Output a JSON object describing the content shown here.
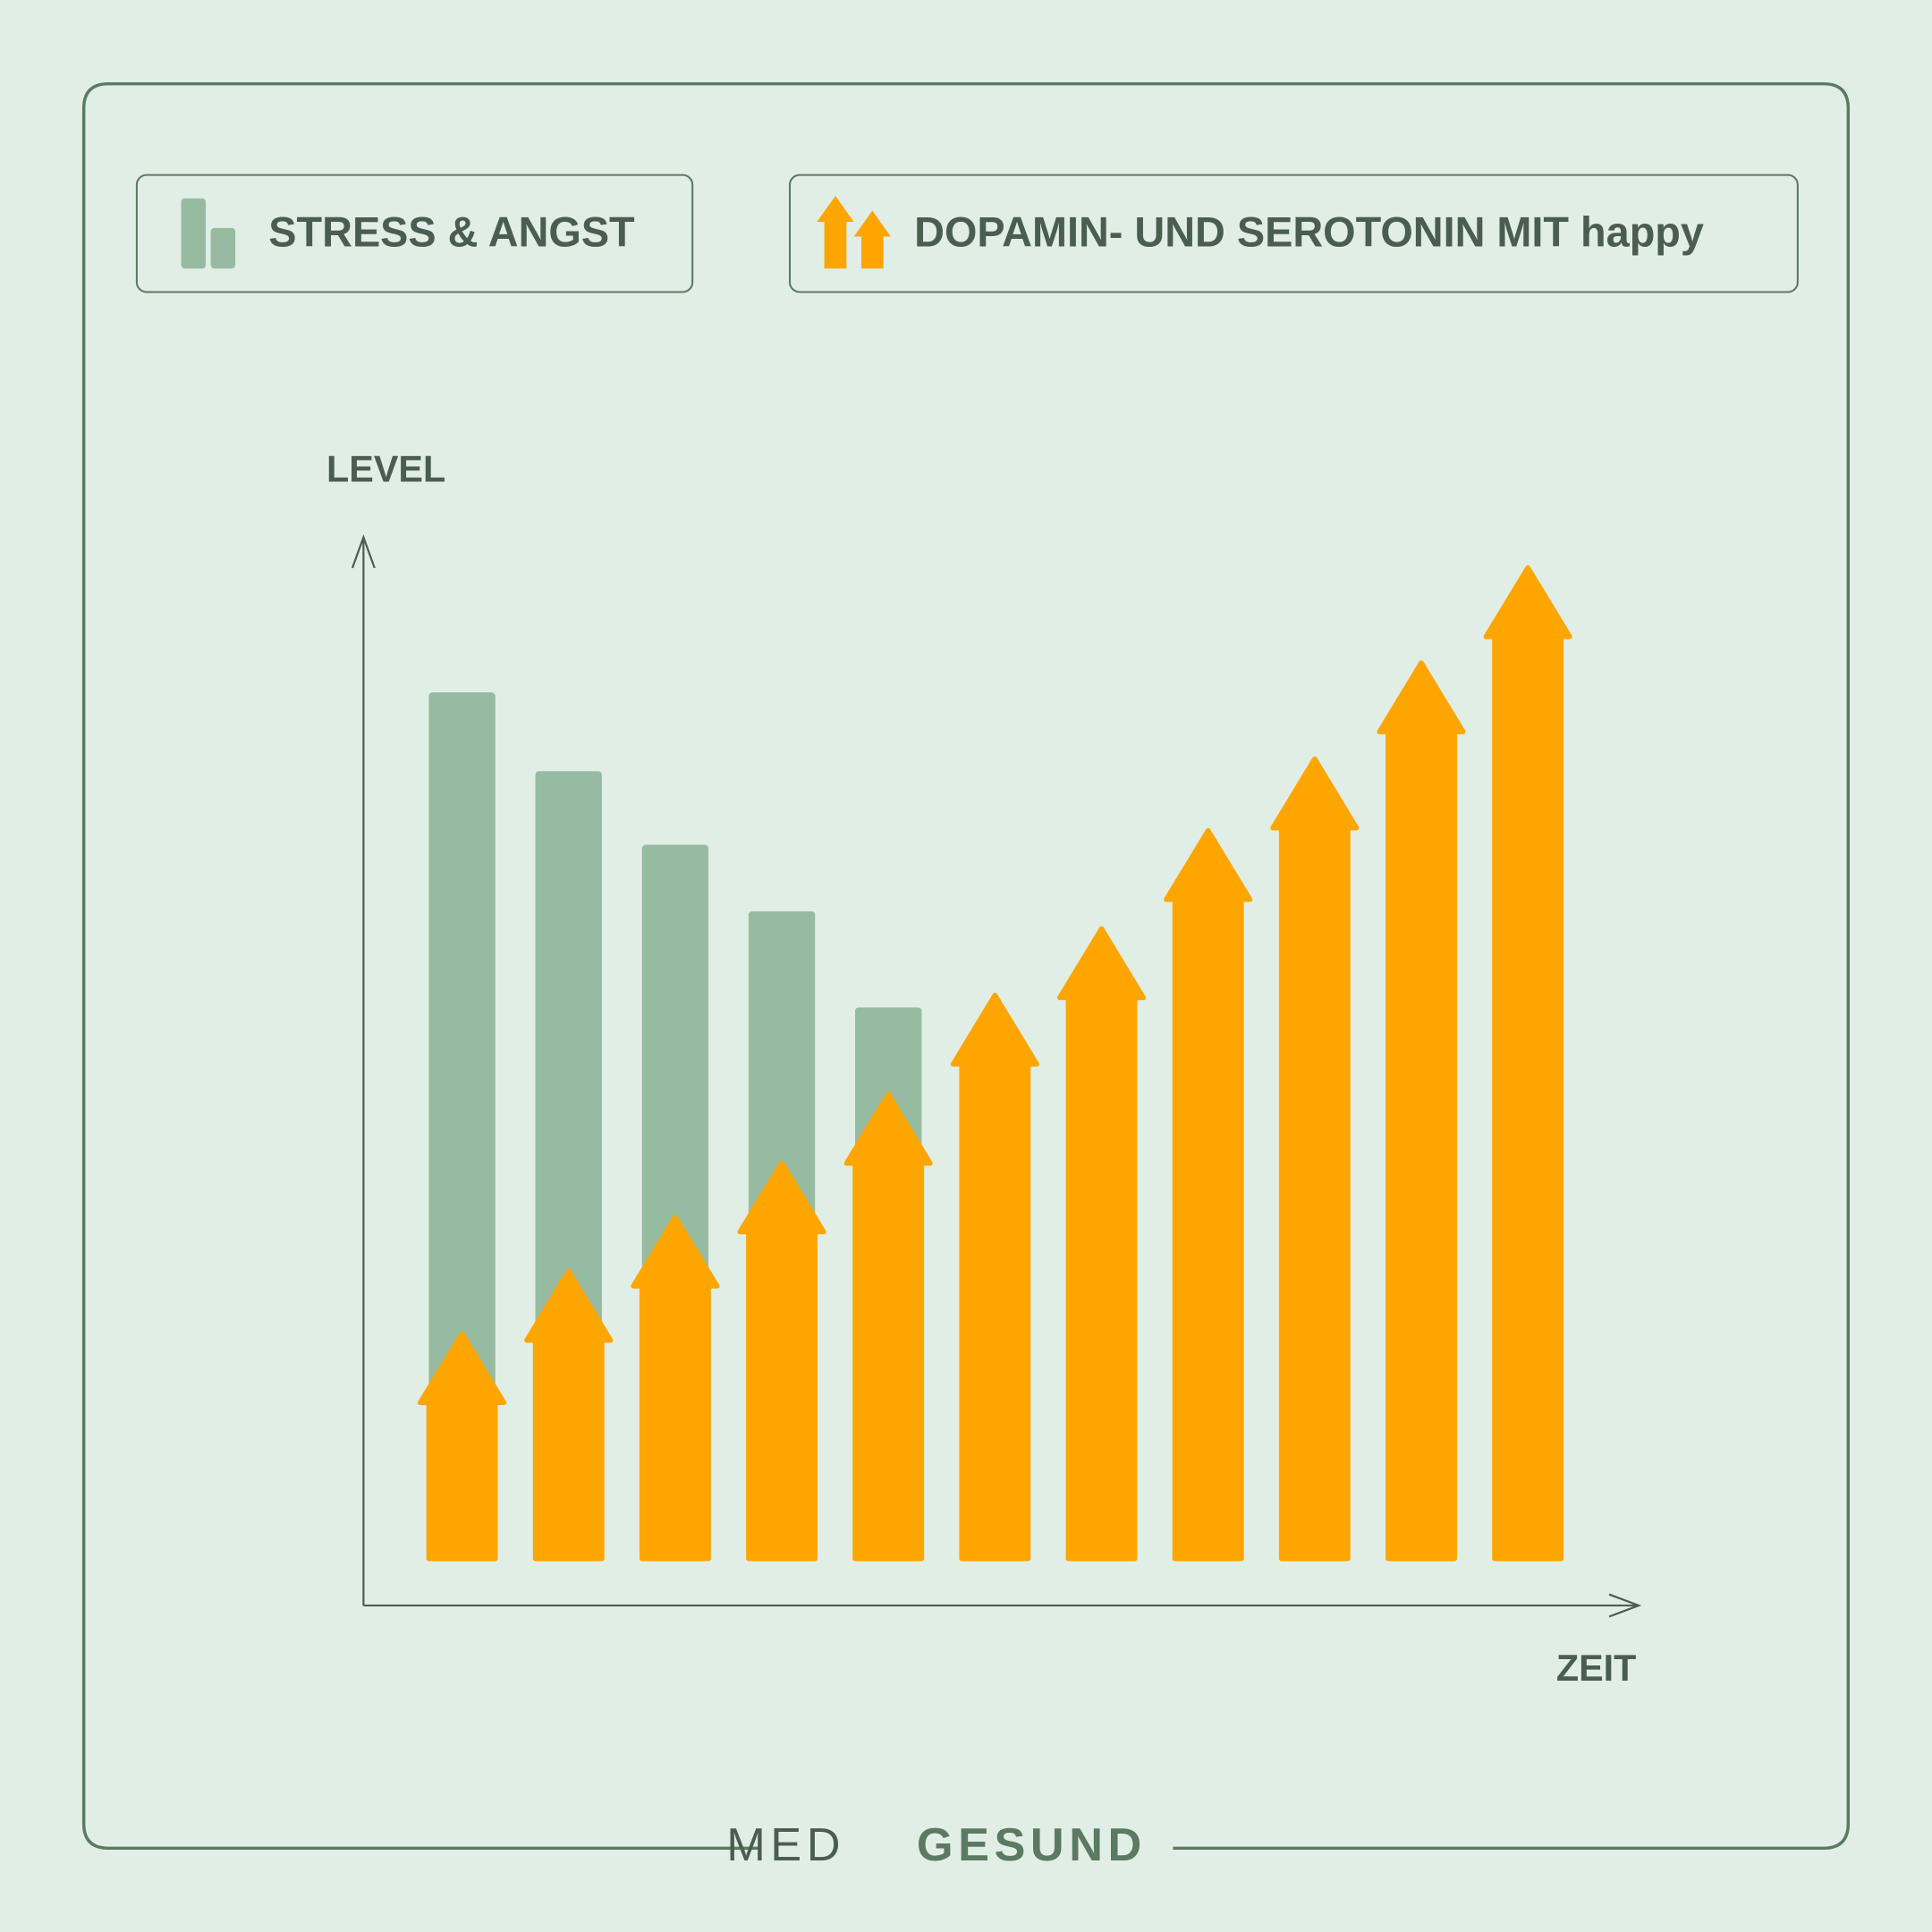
{
  "chart_data": {
    "type": "bar_arrow",
    "y_label": "LEVEL",
    "x_label": "ZEIT",
    "categories": [
      null,
      null,
      null,
      null,
      null,
      null,
      null,
      null,
      null,
      null,
      null
    ],
    "series": [
      {
        "name": "STRESS & ANGST",
        "color": "#97bba0",
        "values": [
          84.7,
          77,
          69.8,
          63.3,
          53.9,
          null,
          null,
          null,
          null,
          null,
          null
        ]
      },
      {
        "name": "DOPAMIN- UND SEROTONIN MIT happy",
        "color": "#ffa500",
        "values": [
          22,
          28.1,
          33.4,
          38.7,
          45.4,
          55.1,
          61.6,
          71.2,
          78.2,
          87.6,
          96.9
        ]
      }
    ],
    "ylim": [
      0,
      100
    ],
    "brand": {
      "light": "MED",
      "bold": "GESUND"
    }
  }
}
